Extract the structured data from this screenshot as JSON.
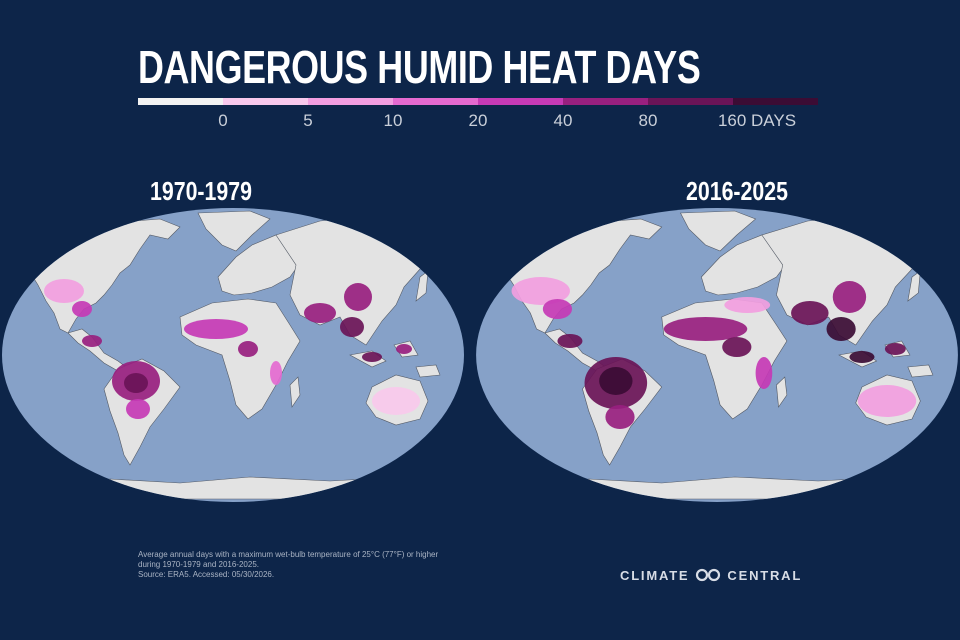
{
  "title": "DANGEROUS HUMID HEAT DAYS",
  "legend": {
    "ticks": [
      "0",
      "5",
      "10",
      "20",
      "40",
      "80",
      "160 DAYS"
    ],
    "colors": [
      "#f2f2f2",
      "#f8c9ec",
      "#f29ee0",
      "#e46ad0",
      "#c63ab5",
      "#98207f",
      "#6a1457",
      "#3b0c34"
    ]
  },
  "maps": {
    "left": {
      "period": "1970-1979"
    },
    "right": {
      "period": "2016-2025"
    }
  },
  "colors": {
    "background": "#0d2549",
    "ocean": "#86a1c8",
    "land": "#e3e3e3",
    "border": "#555b66"
  },
  "footnote": {
    "line1": "Average annual days with a maximum wet-bulb temperature of 25°C (77°F) or higher",
    "line2": "during 1970-1979 and 2016-2025.",
    "line3": "Source: ERA5. Accessed: 05/30/2026."
  },
  "logo": {
    "left_word": "CLIMATE",
    "right_word": "CENTRAL",
    "icon": "infinity-logo-icon"
  }
}
